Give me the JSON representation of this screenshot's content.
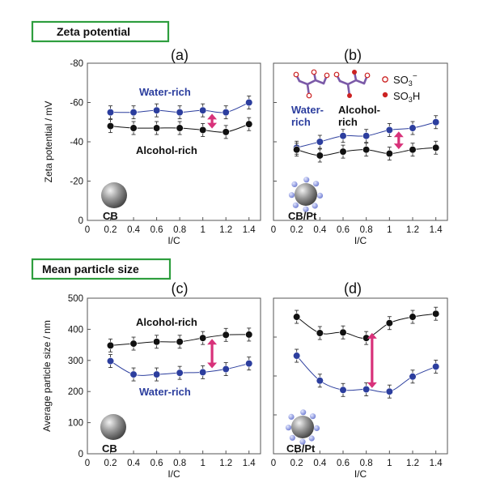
{
  "colors": {
    "water": "#2c3e9e",
    "alcohol": "#111111",
    "arrow": "#d8327a",
    "section_border": "#2e9e3e",
    "ionomer": "#7b5aa8",
    "so3": "#cc2222"
  },
  "sections": {
    "zeta": "Zeta potential",
    "size": "Mean particle size"
  },
  "legend": {
    "so3": "SO3",
    "so3_sup": "−",
    "so3h": "SO3H"
  },
  "chart_data": [
    {
      "id": "a",
      "type": "scatter",
      "panel_label": "(a)",
      "xlabel": "I/C",
      "ylabel": "Zeta potential / mV",
      "xlim": [
        0,
        1.5
      ],
      "ylim": [
        0,
        -80
      ],
      "xticks": [
        "0",
        "0.2",
        "0.4",
        "0.6",
        "0.8",
        "1",
        "1.2",
        "1.4"
      ],
      "yticks": [
        "0",
        "-20",
        "-40",
        "-60",
        "-80"
      ],
      "series": [
        {
          "name": "Water-rich",
          "color": "#2c3e9e",
          "x": [
            0.2,
            0.4,
            0.6,
            0.8,
            1.0,
            1.2,
            1.4
          ],
          "y": [
            -55,
            -55,
            -56,
            -55,
            -56,
            -55,
            -60
          ]
        },
        {
          "name": "Alcohol-rich",
          "color": "#111111",
          "x": [
            0.2,
            0.4,
            0.6,
            0.8,
            1.0,
            1.2,
            1.4
          ],
          "y": [
            -48,
            -47,
            -47,
            -47,
            -46,
            -45,
            -49
          ]
        }
      ],
      "arrow_x": 1.08,
      "particle": "CB"
    },
    {
      "id": "b",
      "type": "scatter",
      "panel_label": "(b)",
      "xlabel": "I/C",
      "ylabel": "",
      "xlim": [
        0,
        1.5
      ],
      "ylim": [
        0,
        -80
      ],
      "xticks": [
        "0",
        "0.2",
        "0.4",
        "0.6",
        "0.8",
        "1",
        "1.2",
        "1.4"
      ],
      "yticks": [],
      "series": [
        {
          "name": "Water-rich",
          "color": "#2c3e9e",
          "label_lines": [
            "Water-",
            "rich"
          ],
          "x": [
            0.2,
            0.4,
            0.6,
            0.8,
            1.0,
            1.2,
            1.4
          ],
          "y": [
            -37,
            -40,
            -43,
            -43,
            -46,
            -47,
            -50
          ]
        },
        {
          "name": "Alcohol-rich",
          "color": "#111111",
          "label_lines": [
            "Alcohol-",
            "rich"
          ],
          "x": [
            0.2,
            0.4,
            0.6,
            0.8,
            1.0,
            1.2,
            1.4
          ],
          "y": [
            -36,
            -33,
            -35,
            -36,
            -34,
            -36,
            -37
          ]
        }
      ],
      "arrow_x": 1.08,
      "particle": "CB/Pt"
    },
    {
      "id": "c",
      "type": "scatter",
      "panel_label": "(c)",
      "xlabel": "I/C",
      "ylabel": "Average particle size / nm",
      "xlim": [
        0,
        1.5
      ],
      "ylim": [
        0,
        500
      ],
      "xticks": [
        "0",
        "0.2",
        "0.4",
        "0.6",
        "0.8",
        "1",
        "1.2",
        "1.4"
      ],
      "yticks": [
        "0",
        "100",
        "200",
        "300",
        "400",
        "500"
      ],
      "series": [
        {
          "name": "Alcohol-rich",
          "color": "#111111",
          "x": [
            0.2,
            0.4,
            0.6,
            0.8,
            1.0,
            1.2,
            1.4
          ],
          "y": [
            348,
            354,
            360,
            360,
            372,
            382,
            383
          ]
        },
        {
          "name": "Water-rich",
          "color": "#2c3e9e",
          "x": [
            0.2,
            0.4,
            0.6,
            0.8,
            1.0,
            1.2,
            1.4
          ],
          "y": [
            298,
            255,
            255,
            260,
            262,
            272,
            290
          ]
        }
      ],
      "arrow_x": 1.08,
      "particle": "CB"
    },
    {
      "id": "d",
      "type": "scatter",
      "panel_label": "(d)",
      "xlabel": "I/C",
      "ylabel": "",
      "xlim": [
        0,
        1.5
      ],
      "ylim": [
        0,
        500
      ],
      "xticks": [
        "0",
        "0.2",
        "0.4",
        "0.6",
        "0.8",
        "1",
        "1.2",
        "1.4"
      ],
      "yticks": [],
      "series": [
        {
          "name": "Alcohol-rich",
          "color": "#111111",
          "x": [
            0.2,
            0.4,
            0.6,
            0.8,
            1.0,
            1.2,
            1.4
          ],
          "y": [
            440,
            388,
            390,
            372,
            420,
            440,
            450
          ]
        },
        {
          "name": "Water-rich",
          "color": "#2c3e9e",
          "x": [
            0.2,
            0.4,
            0.6,
            0.8,
            1.0,
            1.2,
            1.4
          ],
          "y": [
            315,
            235,
            205,
            207,
            200,
            248,
            280
          ]
        }
      ],
      "arrow_x": 0.85,
      "particle": "CB/Pt"
    }
  ]
}
